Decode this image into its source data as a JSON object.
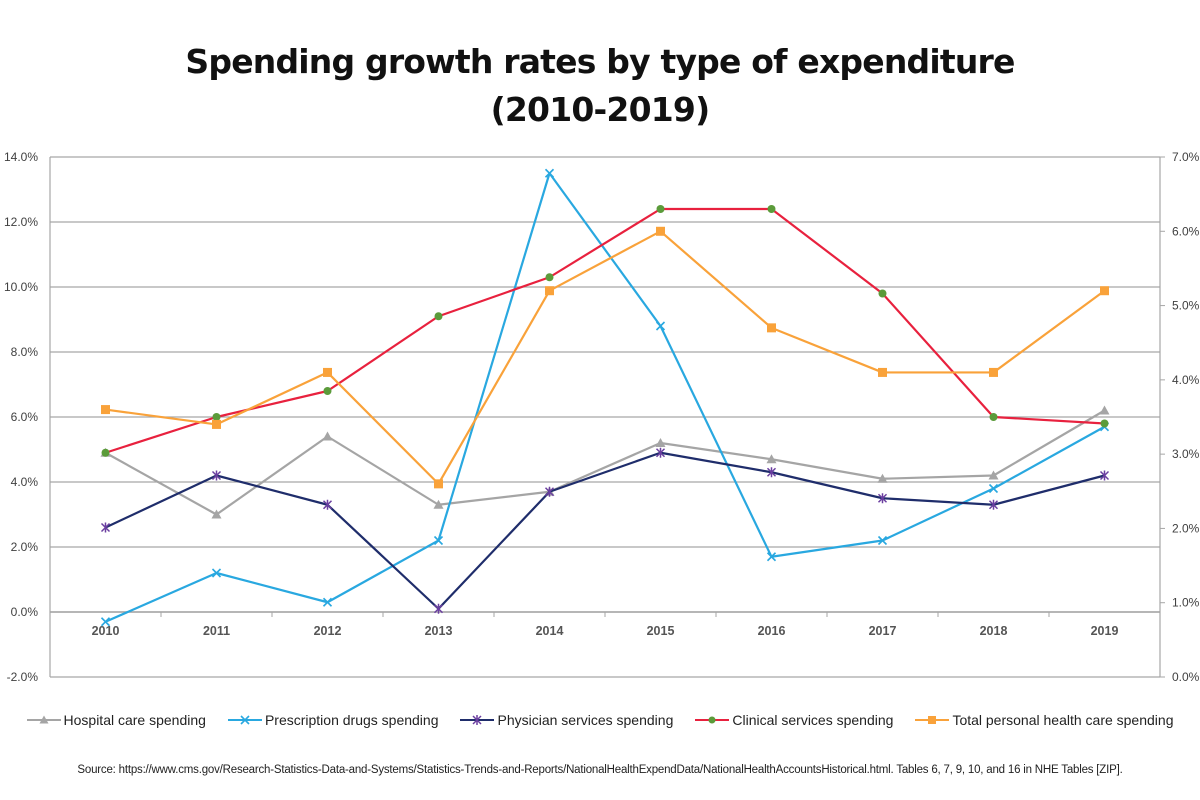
{
  "chart_data": {
    "type": "line",
    "title": "Spending growth rates by type of expenditure",
    "subtitle": "(2010-2019)",
    "xlabel": "",
    "ylabel": "",
    "categories": [
      "2010",
      "2011",
      "2012",
      "2013",
      "2014",
      "2015",
      "2016",
      "2017",
      "2018",
      "2019"
    ],
    "y_left": {
      "ylim": [
        -2.0,
        14.0
      ],
      "ticks": [
        -2.0,
        0.0,
        2.0,
        4.0,
        6.0,
        8.0,
        10.0,
        12.0,
        14.0
      ],
      "tick_labels": [
        "-2.0%",
        "0.0%",
        "2.0%",
        "4.0%",
        "6.0%",
        "8.0%",
        "10.0%",
        "12.0%",
        "14.0%"
      ]
    },
    "y_right": {
      "ylim": [
        0.0,
        7.0
      ],
      "ticks": [
        0.0,
        1.0,
        2.0,
        3.0,
        4.0,
        5.0,
        6.0,
        7.0
      ],
      "tick_labels": [
        "0.0%",
        "1.0%",
        "2.0%",
        "3.0%",
        "4.0%",
        "5.0%",
        "6.0%",
        "7.0%"
      ]
    },
    "grid": true,
    "legend_position": "bottom",
    "series": [
      {
        "name": "Hospital care spending",
        "axis": "left",
        "color": "#A5A5A5",
        "marker": "triangle",
        "values": [
          4.9,
          3.0,
          5.4,
          3.3,
          3.7,
          5.2,
          4.7,
          4.1,
          4.2,
          6.2
        ]
      },
      {
        "name": "Prescription drugs spending",
        "axis": "left",
        "color": "#29A8E0",
        "marker": "x",
        "values": [
          -0.3,
          1.2,
          0.3,
          2.2,
          13.5,
          8.8,
          1.7,
          2.2,
          3.8,
          5.7
        ]
      },
      {
        "name": "Physician services spending",
        "axis": "left",
        "color": "#1F2D6B",
        "marker": "star",
        "values": [
          2.6,
          4.2,
          3.3,
          0.1,
          3.7,
          4.9,
          4.3,
          3.5,
          3.3,
          4.2
        ]
      },
      {
        "name": "Clinical services spending",
        "axis": "left",
        "color": "#E8213E",
        "marker": "circle",
        "marker_color": "#5B9B3A",
        "values": [
          4.9,
          6.0,
          6.8,
          9.1,
          10.3,
          12.4,
          12.4,
          9.8,
          6.0,
          5.8
        ]
      },
      {
        "name": "Total personal health care spending",
        "axis": "right",
        "color": "#F9A23A",
        "marker": "square",
        "values": [
          3.6,
          3.4,
          4.1,
          2.6,
          5.2,
          6.0,
          4.7,
          4.1,
          4.1,
          5.2
        ]
      }
    ]
  },
  "header": {
    "title_line1": "Spending growth rates by type of expenditure",
    "title_line2": "(2010-2019)"
  },
  "legend": {
    "items": [
      {
        "label": "Hospital care spending",
        "marker": "triangle-icon"
      },
      {
        "label": "Prescription drugs spending",
        "marker": "x-icon"
      },
      {
        "label": "Physician services spending",
        "marker": "star-icon"
      },
      {
        "label": "Clinical services spending",
        "marker": "circle-icon"
      },
      {
        "label": "Total personal health care spending",
        "marker": "square-icon"
      }
    ]
  },
  "footer": {
    "source": "Source: https://www.cms.gov/Research-Statistics-Data-and-Systems/Statistics-Trends-and-Reports/NationalHealthExpendData/NationalHealthAccountsHistorical.html. Tables 6, 7, 9, 10, and 16 in NHE Tables [ZIP]."
  }
}
